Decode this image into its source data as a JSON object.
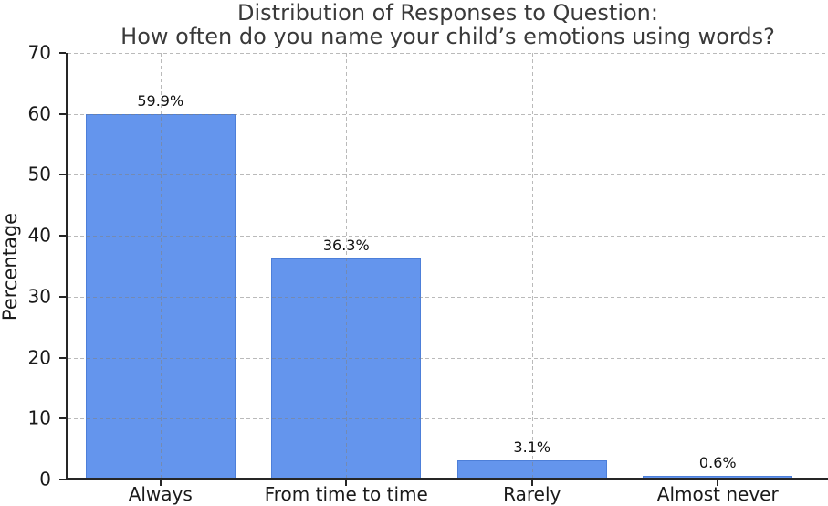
{
  "chart": {
    "title_line1": "Distribution of Responses to Question:",
    "title_line2": "How often do you name your child’s emotions using words?",
    "ylabel": "Percentage"
  },
  "chart_data": {
    "type": "bar",
    "title": "Distribution of Responses to Question:\nHow often do you name your child’s emotions using words?",
    "categories": [
      "Always",
      "From time to time",
      "Rarely",
      "Almost never"
    ],
    "values": [
      59.9,
      36.3,
      3.1,
      0.6
    ],
    "value_labels": [
      "59.9%",
      "36.3%",
      "3.1%",
      "0.6%"
    ],
    "xlabel": "",
    "ylabel": "Percentage",
    "ylim": [
      0,
      70
    ],
    "yticks": [
      0,
      10,
      20,
      30,
      40,
      50,
      60,
      70
    ],
    "grid": "dashed, horizontal at each y-tick and vertical at each bar center, drawn over bars",
    "legend": "none",
    "colors": {
      "bar_fill": "#6495ED",
      "bar_edge": "#4d7fd9",
      "grid": "#c8c8c8",
      "spine": "#262626",
      "title_text": "#3a3a3a",
      "tick_text": "#1a1a1a"
    }
  }
}
